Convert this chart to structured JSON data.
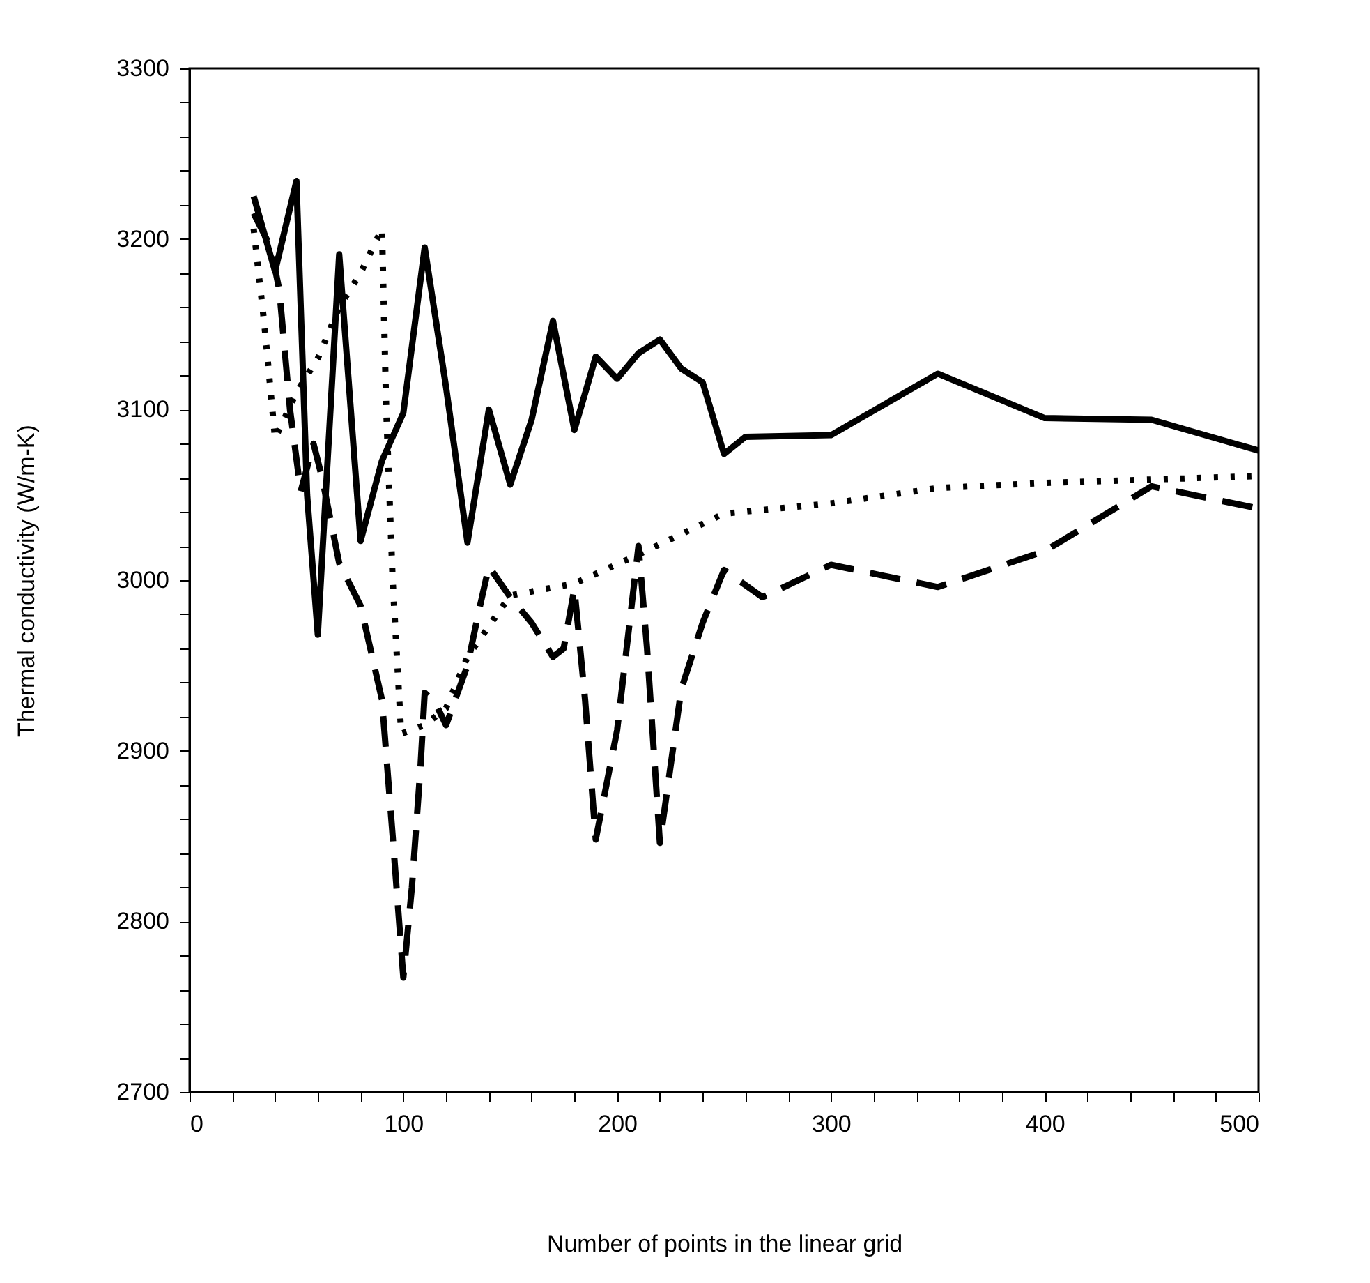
{
  "chart_data": {
    "type": "line",
    "xlabel": "Number of points in the linear grid",
    "ylabel": "Thermal conductivity (W/m-K)",
    "xlim": [
      0,
      500
    ],
    "ylim": [
      2700,
      3300
    ],
    "xticks": [
      0,
      {
        "value": 20,
        "label": null
      },
      {
        "value": 40,
        "label": null
      },
      {
        "value": 60,
        "label": null
      },
      {
        "value": 80,
        "label": null
      },
      100,
      {
        "value": 120,
        "label": null
      },
      {
        "value": 140,
        "label": null
      },
      {
        "value": 160,
        "label": null
      },
      {
        "value": 180,
        "label": null
      },
      200,
      {
        "value": 220,
        "label": null
      },
      {
        "value": 240,
        "label": null
      },
      {
        "value": 260,
        "label": null
      },
      {
        "value": 280,
        "label": null
      },
      300,
      {
        "value": 320,
        "label": null
      },
      {
        "value": 340,
        "label": null
      },
      {
        "value": 360,
        "label": null
      },
      {
        "value": 380,
        "label": null
      },
      400,
      {
        "value": 420,
        "label": null
      },
      {
        "value": 440,
        "label": null
      },
      {
        "value": 460,
        "label": null
      },
      {
        "value": 480,
        "label": null
      },
      500
    ],
    "yticks": [
      2700,
      {
        "value": 2720,
        "label": null
      },
      {
        "value": 2740,
        "label": null
      },
      {
        "value": 2760,
        "label": null
      },
      {
        "value": 2780,
        "label": null
      },
      2800,
      {
        "value": 2820,
        "label": null
      },
      {
        "value": 2840,
        "label": null
      },
      {
        "value": 2860,
        "label": null
      },
      {
        "value": 2880,
        "label": null
      },
      2900,
      {
        "value": 2920,
        "label": null
      },
      {
        "value": 2940,
        "label": null
      },
      {
        "value": 2960,
        "label": null
      },
      {
        "value": 2980,
        "label": null
      },
      3000,
      {
        "value": 3020,
        "label": null
      },
      {
        "value": 3040,
        "label": null
      },
      {
        "value": 3060,
        "label": null
      },
      {
        "value": 3080,
        "label": null
      },
      3100,
      {
        "value": 3120,
        "label": null
      },
      {
        "value": 3140,
        "label": null
      },
      {
        "value": 3160,
        "label": null
      },
      {
        "value": 3180,
        "label": null
      },
      3200,
      {
        "value": 3220,
        "label": null
      },
      {
        "value": 3240,
        "label": null
      },
      {
        "value": 3260,
        "label": null
      },
      {
        "value": 3280,
        "label": null
      },
      3300
    ],
    "grid": false,
    "marker": "none",
    "series": [
      {
        "color": "#000000",
        "line_style": "solid",
        "x": [
          30,
          40,
          50,
          55,
          60,
          70,
          80,
          90,
          100,
          110,
          120,
          130,
          140,
          150,
          160,
          170,
          180,
          190,
          200,
          210,
          220,
          230,
          240,
          250,
          260,
          300,
          350,
          400,
          450,
          500
        ],
        "values": [
          3225,
          3181,
          3234,
          3050,
          2968,
          3191,
          3023,
          3070,
          3098,
          3195,
          3113,
          3022,
          3100,
          3056,
          3094,
          3152,
          3088,
          3131,
          3118,
          3133,
          3141,
          3124,
          3116,
          3074,
          3084,
          3085,
          3121,
          3095,
          3094,
          3076
        ]
      },
      {
        "color": "#000000",
        "line_style": "dotted",
        "x": [
          30,
          35,
          40,
          50,
          60,
          70,
          80,
          90,
          92,
          95,
          99,
          110,
          120,
          130,
          150,
          180,
          210,
          250,
          300,
          350,
          400,
          450,
          500
        ],
        "values": [
          3206,
          3150,
          3083,
          3110,
          3130,
          3160,
          3180,
          3206,
          3100,
          3000,
          2910,
          2915,
          2925,
          2955,
          2991,
          2998,
          3015,
          3039,
          3045,
          3054,
          3057,
          3059,
          3061
        ]
      },
      {
        "color": "#000000",
        "line_style": "dashed",
        "x": [
          30,
          38,
          42,
          47,
          52,
          58,
          62,
          70,
          80,
          90,
          95,
          100,
          104,
          108,
          110,
          115,
          120,
          130,
          135,
          140,
          150,
          160,
          170,
          175,
          180,
          185,
          190,
          200,
          210,
          214,
          220,
          230,
          240,
          250,
          268,
          300,
          350,
          400,
          450,
          500
        ],
        "values": [
          3215,
          3195,
          3170,
          3100,
          3052,
          3080,
          3060,
          3010,
          2985,
          2930,
          2850,
          2767,
          2820,
          2890,
          2934,
          2928,
          2915,
          2950,
          2980,
          3008,
          2990,
          2975,
          2955,
          2960,
          2995,
          2930,
          2848,
          2912,
          3020,
          2960,
          2846,
          2936,
          2975,
          3006,
          2990,
          3009,
          2996,
          3017,
          3055,
          3042
        ]
      }
    ]
  }
}
